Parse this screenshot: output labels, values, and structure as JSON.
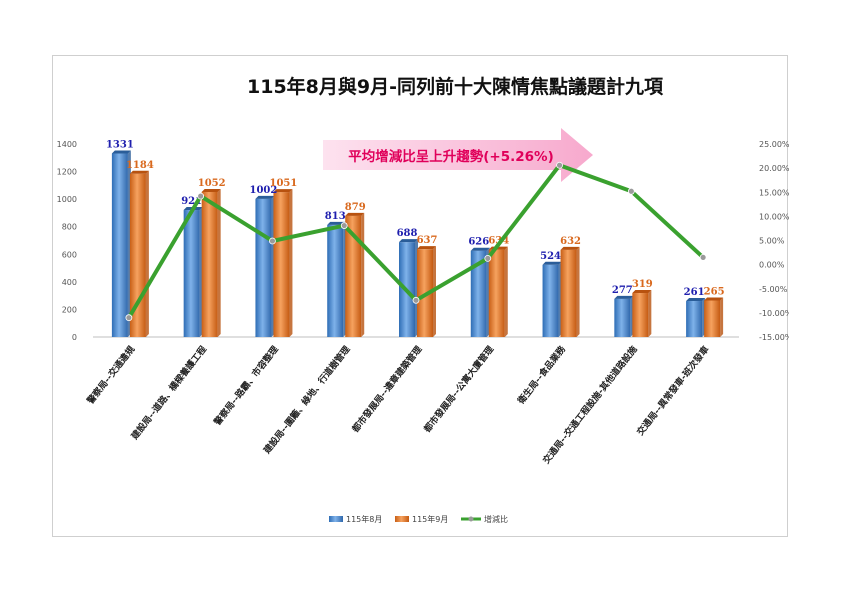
{
  "chart_data": {
    "type": "bar",
    "title": "115年8月與9月-同列前十大陳情焦點議題計九項",
    "annotation": "平均增減比呈上升趨勢(+5.26%)",
    "categories": [
      "警察局--交通違規",
      "建設局--道路、橋樑養護工程",
      "警察局--路霸、市容整理",
      "建設局--圍籬、綠地、行道樹管理",
      "都市發展局--違章建築管理",
      "都市發展局--公寓大廈管理",
      "衛生局--食品業務",
      "交通局--交通工程設施-其他道路設施",
      "交通局--異常發車-班次發車"
    ],
    "series": [
      {
        "name": "115年8月",
        "type": "bar",
        "axis": "left",
        "color": "#4f8fd6",
        "values": [
          1331,
          921,
          1002,
          813,
          688,
          626,
          524,
          277,
          261
        ]
      },
      {
        "name": "115年9月",
        "type": "bar",
        "axis": "left",
        "color": "#ee7d31",
        "values": [
          1184,
          1052,
          1051,
          879,
          637,
          634,
          632,
          319,
          265
        ]
      },
      {
        "name": "增減比",
        "type": "line",
        "axis": "right",
        "color": "#3aa12f",
        "values": [
          -11.0,
          14.2,
          4.9,
          8.1,
          -7.4,
          1.3,
          20.6,
          15.2,
          1.5
        ]
      }
    ],
    "left_ticks": [
      "0",
      "200",
      "400",
      "600",
      "800",
      "1000",
      "1200",
      "1400"
    ],
    "right_ticks": [
      "25.00%",
      "20.00%",
      "15.00%",
      "10.00%",
      "5.00%",
      "0.00%",
      "-5.00%",
      "-10.00%",
      "-15.00%"
    ],
    "ylim": [
      0,
      1400
    ],
    "y2lim": [
      -15,
      25
    ],
    "grid": false,
    "legend_position": "bottom",
    "label_colors": {
      "aug": "#1f1fae",
      "sep": "#d9691e"
    }
  }
}
